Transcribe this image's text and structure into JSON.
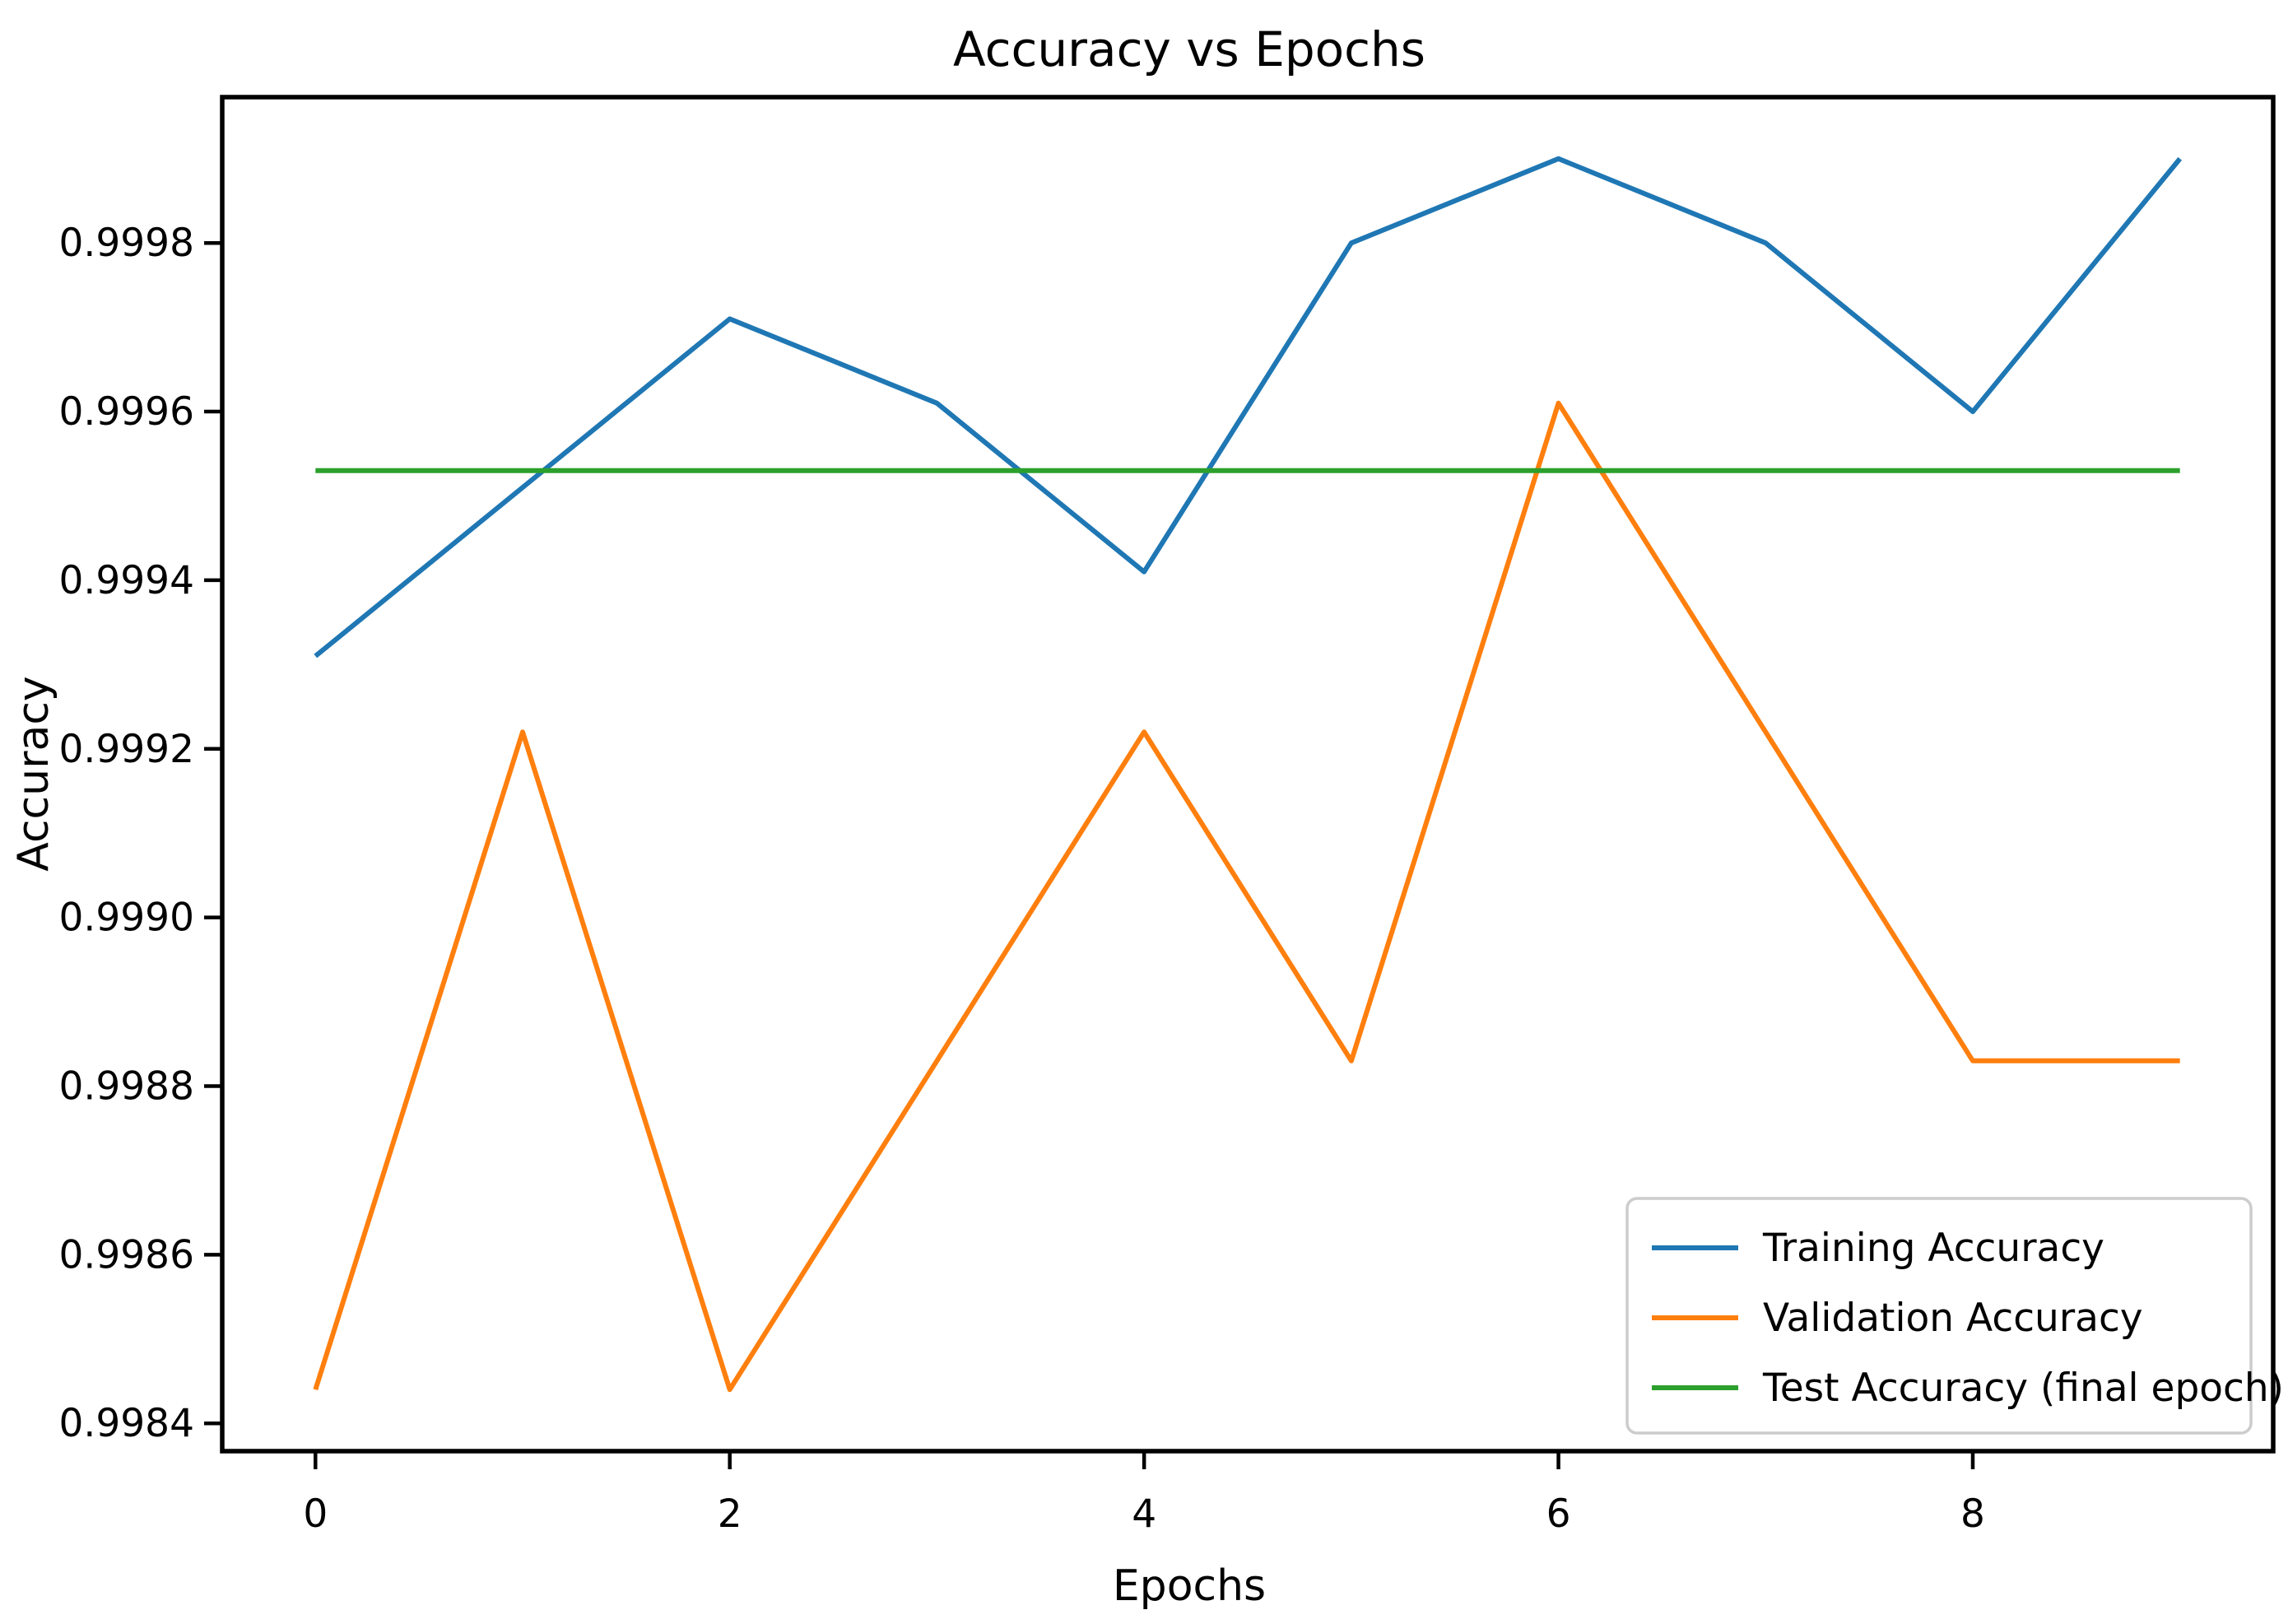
{
  "figure": {
    "title": "Accuracy vs Epochs",
    "xlabel": "Epochs",
    "ylabel": "Accuracy",
    "background_color": "#ffffff",
    "spine_color": "#000000"
  },
  "chart_data": {
    "type": "line",
    "title": "Accuracy vs Epochs",
    "xlabel": "Epochs",
    "ylabel": "Accuracy",
    "x": [
      0,
      1,
      2,
      3,
      4,
      5,
      6,
      7,
      8,
      9
    ],
    "series": [
      {
        "name": "Training Accuracy",
        "color": "#1f77b4",
        "values": [
          0.99931,
          0.99951,
          0.99971,
          0.99961,
          0.99941,
          0.9998,
          0.9999,
          0.9998,
          0.9996,
          0.9999
        ]
      },
      {
        "name": "Validation Accuracy",
        "color": "#ff7f0e",
        "values": [
          0.99844,
          0.99922,
          0.99844,
          0.99883,
          0.99922,
          0.99883,
          0.99961,
          0.99922,
          0.99883,
          0.99883
        ]
      },
      {
        "name": "Test Accuracy (final epoch)",
        "color": "#2ca02c",
        "values": [
          0.99953,
          0.99953,
          0.99953,
          0.99953,
          0.99953,
          0.99953,
          0.99953,
          0.99953,
          0.99953,
          0.99953
        ],
        "constant_value": 0.99953
      }
    ],
    "xticks": [
      0,
      2,
      4,
      6,
      8
    ],
    "yticks": [
      0.9984,
      0.9986,
      0.9988,
      0.999,
      0.9992,
      0.9994,
      0.9996,
      0.9998
    ],
    "ytick_decimals": 4,
    "xlim": [
      -0.45,
      9.45
    ],
    "ylim": [
      0.998367,
      0.999973
    ],
    "grid": false,
    "legend_position": "lower right",
    "legend_entries": [
      "Training Accuracy",
      "Validation Accuracy",
      "Test Accuracy (final epoch)"
    ]
  }
}
